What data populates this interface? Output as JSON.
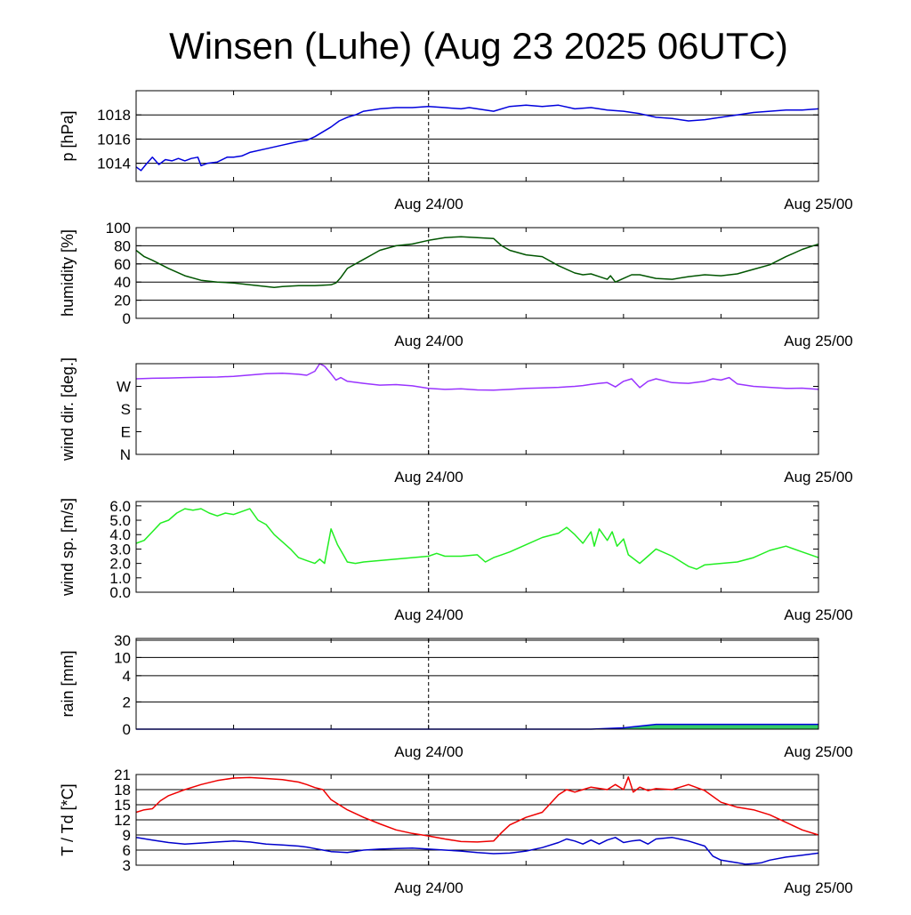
{
  "title": "Winsen (Luhe) (Aug 23 2025 06UTC)",
  "colors": {
    "pressure": "#0000dd",
    "humidity": "#005500",
    "wind_dir": "#9933ff",
    "wind_speed": "#22ee22",
    "rain_line": "#0000dd",
    "rain_fill": "#33cc66",
    "temperature": "#ee0000",
    "dewpoint": "#0000cc"
  },
  "chart_data": [
    {
      "type": "line",
      "id": "pressure",
      "ylabel": "p [hPa]",
      "x_labels": [
        "Aug 24/00",
        "Aug 25/00"
      ],
      "x_range": [
        0,
        42
      ],
      "ylim": [
        1012.5,
        1020
      ],
      "y_ticks": [
        1014,
        1016,
        1018
      ],
      "y_tick_labels": [
        "1014",
        "1016",
        "1018"
      ],
      "grid": true,
      "series": [
        {
          "color": "pressure",
          "x": [
            0,
            0.3,
            0.6,
            1,
            1.4,
            1.8,
            2.2,
            2.6,
            3,
            3.4,
            3.8,
            4,
            4.4,
            5,
            5.6,
            6,
            6.5,
            7,
            8,
            9,
            10,
            10.5,
            11,
            12,
            12.5,
            13,
            13.5,
            14,
            15,
            16,
            17,
            18,
            19,
            20,
            20.5,
            21,
            21.5,
            22,
            23,
            24,
            25,
            26,
            27,
            28,
            28.5,
            29,
            30,
            31,
            32,
            33,
            34,
            35,
            36,
            37,
            38,
            39,
            40,
            41,
            42
          ],
          "y": [
            1013.7,
            1013.4,
            1013.9,
            1014.5,
            1013.9,
            1014.3,
            1014.2,
            1014.4,
            1014.2,
            1014.4,
            1014.5,
            1013.8,
            1014.0,
            1014.1,
            1014.5,
            1014.5,
            1014.6,
            1014.9,
            1015.2,
            1015.5,
            1015.8,
            1015.9,
            1016.2,
            1017.0,
            1017.5,
            1017.8,
            1018.0,
            1018.3,
            1018.5,
            1018.6,
            1018.6,
            1018.7,
            1018.6,
            1018.5,
            1018.6,
            1018.5,
            1018.4,
            1018.3,
            1018.7,
            1018.8,
            1018.7,
            1018.8,
            1018.5,
            1018.6,
            1018.5,
            1018.4,
            1018.3,
            1018.1,
            1017.8,
            1017.7,
            1017.5,
            1017.6,
            1017.8,
            1018.0,
            1018.2,
            1018.3,
            1018.4,
            1018.4,
            1018.5
          ]
        }
      ]
    },
    {
      "type": "line",
      "id": "humidity",
      "ylabel": "humidity [%]",
      "x_labels": [
        "Aug 24/00",
        "Aug 25/00"
      ],
      "x_range": [
        0,
        42
      ],
      "ylim": [
        0,
        100
      ],
      "y_ticks": [
        0,
        20,
        40,
        60,
        80,
        100
      ],
      "y_tick_labels": [
        "0",
        "20",
        "40",
        "60",
        "80",
        "100"
      ],
      "grid": true,
      "series": [
        {
          "color": "humidity",
          "x": [
            0,
            0.5,
            1,
            2,
            3,
            4,
            5,
            6,
            7,
            8,
            8.5,
            9,
            10,
            11,
            12,
            12.3,
            12.6,
            13,
            14,
            14.5,
            15,
            16,
            17,
            18,
            19,
            20,
            21,
            22,
            22.5,
            23,
            24,
            25,
            26,
            27,
            27.5,
            28,
            28.5,
            29,
            29.2,
            29.5,
            30,
            30.5,
            31,
            32,
            33,
            34,
            35,
            36,
            37,
            38,
            39,
            40,
            41,
            42
          ],
          "y": [
            75,
            68,
            64,
            55,
            47,
            42,
            40,
            39,
            37,
            35,
            34,
            35,
            36,
            36,
            37,
            39,
            45,
            55,
            65,
            70,
            75,
            80,
            82,
            86,
            89,
            90,
            89,
            88,
            80,
            75,
            70,
            68,
            58,
            50,
            48,
            49,
            46,
            43,
            47,
            40,
            44,
            48,
            48,
            44,
            43,
            46,
            48,
            47,
            49,
            54,
            59,
            68,
            76,
            82
          ]
        }
      ]
    },
    {
      "type": "line",
      "id": "wind_dir",
      "ylabel": "wind dir. [deg.]",
      "x_labels": [
        "Aug 24/00",
        "Aug 25/00"
      ],
      "x_range": [
        0,
        42
      ],
      "ylim": [
        0,
        360
      ],
      "y_ticks": [
        0,
        90,
        180,
        270
      ],
      "y_tick_labels": [
        "N",
        "E",
        "S",
        "W"
      ],
      "grid": false,
      "series": [
        {
          "color": "wind_dir",
          "x": [
            0,
            1,
            2,
            3,
            4,
            5,
            6,
            7,
            8,
            9,
            10,
            10.5,
            11,
            11.3,
            11.6,
            12,
            12.3,
            12.6,
            13,
            14,
            15,
            16,
            17,
            18,
            19,
            20,
            21,
            22,
            23,
            24,
            25,
            26,
            27,
            27.5,
            28,
            28.5,
            29,
            29.5,
            30,
            30.5,
            31,
            31.5,
            32,
            33,
            34,
            35,
            35.5,
            36,
            36.5,
            37,
            38,
            39,
            40,
            41,
            42
          ],
          "y": [
            300,
            302,
            303,
            305,
            306,
            307,
            310,
            315,
            320,
            322,
            318,
            314,
            330,
            360,
            350,
            320,
            295,
            305,
            290,
            282,
            275,
            277,
            272,
            262,
            258,
            260,
            256,
            255,
            258,
            262,
            264,
            266,
            270,
            273,
            278,
            282,
            285,
            268,
            290,
            300,
            265,
            290,
            300,
            285,
            282,
            290,
            300,
            295,
            305,
            280,
            270,
            266,
            262,
            263,
            258
          ]
        }
      ]
    },
    {
      "type": "line",
      "id": "wind_speed",
      "ylabel": "wind sp. [m/s]",
      "x_labels": [
        "Aug 24/00",
        "Aug 25/00"
      ],
      "x_range": [
        0,
        42
      ],
      "ylim": [
        0,
        6.3
      ],
      "y_ticks": [
        0,
        1,
        2,
        3,
        4,
        5,
        6
      ],
      "y_tick_labels": [
        "0.0",
        "1.0",
        "2.0",
        "3.0",
        "4.0",
        "5.0",
        "6.0"
      ],
      "grid": false,
      "series": [
        {
          "color": "wind_speed",
          "x": [
            0,
            0.5,
            1,
            1.5,
            2,
            2.5,
            3,
            3.5,
            4,
            4.5,
            5,
            5.5,
            6,
            6.5,
            7,
            7.5,
            8,
            8.5,
            9,
            9.5,
            10,
            10.5,
            11,
            11.3,
            11.6,
            12,
            12.4,
            12.8,
            13,
            13.5,
            14,
            15,
            16,
            17,
            18,
            18.5,
            19,
            20,
            21,
            21.5,
            22,
            22.5,
            23,
            24,
            25,
            26,
            26.5,
            27,
            27.5,
            28,
            28.2,
            28.5,
            29,
            29.3,
            29.6,
            30,
            30.3,
            31,
            31.5,
            32,
            33,
            34,
            34.5,
            35,
            36,
            37,
            38,
            39,
            40,
            41,
            42
          ],
          "y": [
            3.4,
            3.6,
            4.2,
            4.8,
            5.0,
            5.5,
            5.8,
            5.7,
            5.8,
            5.5,
            5.3,
            5.5,
            5.4,
            5.6,
            5.8,
            5.0,
            4.7,
            4.0,
            3.5,
            3.0,
            2.4,
            2.2,
            2.0,
            2.3,
            2.0,
            4.4,
            3.3,
            2.5,
            2.1,
            2.0,
            2.1,
            2.2,
            2.3,
            2.4,
            2.5,
            2.7,
            2.5,
            2.5,
            2.6,
            2.1,
            2.4,
            2.6,
            2.8,
            3.3,
            3.8,
            4.1,
            4.5,
            4.0,
            3.4,
            4.2,
            3.2,
            4.4,
            3.6,
            4.2,
            3.2,
            3.7,
            2.6,
            2.0,
            2.5,
            3.0,
            2.5,
            1.8,
            1.6,
            1.9,
            2.0,
            2.1,
            2.4,
            2.9,
            3.2,
            2.8,
            2.4
          ]
        }
      ]
    },
    {
      "type": "area",
      "id": "rain",
      "ylabel": "rain [mm]",
      "x_labels": [
        "Aug 24/00",
        "Aug 25/00"
      ],
      "x_range": [
        0,
        42
      ],
      "y_scale": "nonlinear",
      "ylim": [
        0,
        30
      ],
      "y_ticks": [
        0,
        2,
        4,
        10,
        30
      ],
      "y_tick_labels": [
        "0",
        "2",
        "4",
        "10",
        "30"
      ],
      "grid": true,
      "series": [
        {
          "color": "rain_line",
          "fill": "rain_fill",
          "x": [
            0,
            28,
            30,
            32,
            42
          ],
          "y": [
            0,
            0,
            0.1,
            0.35,
            0.35
          ]
        }
      ]
    },
    {
      "type": "line",
      "id": "temp_dew",
      "ylabel": "T / Td [*C]",
      "x_labels": [
        "Aug 24/00",
        "Aug 25/00"
      ],
      "x_range": [
        0,
        42
      ],
      "ylim": [
        3,
        21
      ],
      "y_ticks": [
        3,
        6,
        9,
        12,
        15,
        18,
        21
      ],
      "y_tick_labels": [
        "3",
        "6",
        "9",
        "12",
        "15",
        "18",
        "21"
      ],
      "grid": true,
      "series": [
        {
          "color": "temperature",
          "x": [
            0,
            0.5,
            1,
            1.5,
            2,
            3,
            4,
            5,
            6,
            7,
            8,
            9,
            10,
            10.5,
            11,
            11.5,
            12,
            13,
            14,
            15,
            16,
            17,
            18,
            19,
            20,
            21,
            22,
            22.5,
            23,
            24,
            25,
            26,
            26.5,
            27,
            27.5,
            28,
            29,
            29.5,
            30,
            30.3,
            30.6,
            31,
            31.5,
            32,
            33,
            34,
            35,
            36,
            37,
            38,
            39,
            40,
            41,
            42
          ],
          "y": [
            13.5,
            14,
            14.2,
            15.8,
            16.8,
            18.0,
            19.0,
            19.8,
            20.3,
            20.4,
            20.2,
            20.0,
            19.5,
            19.0,
            18.4,
            18.0,
            16.0,
            14.0,
            12.5,
            11.2,
            10.0,
            9.3,
            8.8,
            8.2,
            7.7,
            7.6,
            7.8,
            9.5,
            11.0,
            12.5,
            13.5,
            17.0,
            18.0,
            17.5,
            18.0,
            18.5,
            18.0,
            19.0,
            18.0,
            20.5,
            17.5,
            18.5,
            17.8,
            18.2,
            18.0,
            19.0,
            17.8,
            15.5,
            14.5,
            14.0,
            13.0,
            11.5,
            10.0,
            9.0
          ]
        },
        {
          "color": "dewpoint",
          "x": [
            0,
            1,
            2,
            3,
            4,
            5,
            6,
            7,
            8,
            9,
            10,
            10.5,
            11,
            11.5,
            12,
            13,
            14,
            15,
            16,
            17,
            18,
            19,
            20,
            21,
            22,
            23,
            24,
            25,
            26,
            26.5,
            27,
            27.5,
            28,
            28.5,
            29,
            29.5,
            30,
            30.5,
            31,
            31.5,
            32,
            33,
            34,
            35,
            35.5,
            36,
            37,
            37.5,
            38,
            38.5,
            39,
            40,
            41,
            42
          ],
          "y": [
            8.5,
            8.0,
            7.5,
            7.2,
            7.4,
            7.6,
            7.8,
            7.6,
            7.2,
            7.0,
            6.8,
            6.6,
            6.3,
            6.0,
            5.7,
            5.5,
            6.0,
            6.2,
            6.3,
            6.4,
            6.2,
            6.0,
            5.8,
            5.5,
            5.3,
            5.4,
            5.8,
            6.5,
            7.5,
            8.2,
            7.8,
            7.2,
            8.0,
            7.2,
            8.0,
            8.5,
            7.5,
            7.8,
            8.0,
            7.2,
            8.2,
            8.5,
            7.8,
            6.8,
            4.8,
            4.0,
            3.5,
            3.2,
            3.3,
            3.5,
            4.0,
            4.6,
            5.0,
            5.4
          ]
        }
      ]
    }
  ]
}
